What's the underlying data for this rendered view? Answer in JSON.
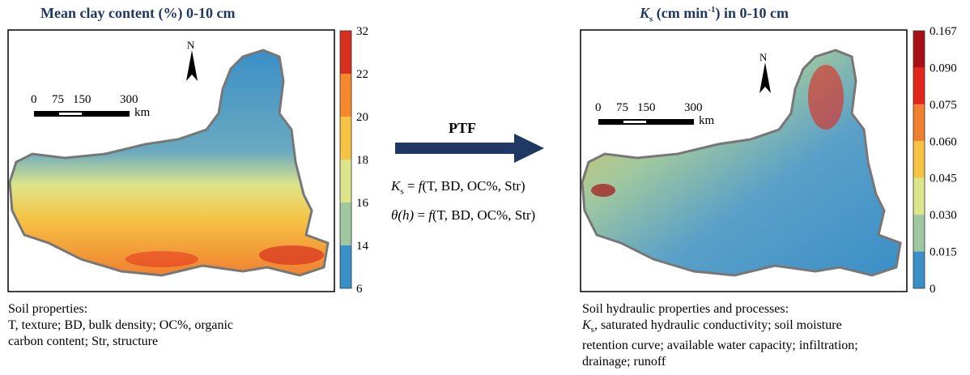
{
  "left_panel": {
    "title": "Mean clay content (%) 0-10 cm",
    "north": "N",
    "scale": {
      "ticks": [
        "0",
        "75",
        "150",
        "300"
      ],
      "unit": "km"
    },
    "colorbar": {
      "labels": [
        "32",
        "22",
        "20",
        "18",
        "16",
        "14",
        "6"
      ],
      "colors": [
        "#d7301f",
        "#f4882b",
        "#f6c344",
        "#dde58a",
        "#9fc8a0",
        "#3a8fc7"
      ]
    },
    "caption": [
      "Soil properties:",
      "T, texture; BD, bulk density; OC%, organic",
      "carbon content; Str, structure"
    ]
  },
  "middle": {
    "arrow_label": "PTF",
    "equation_1": {
      "symbol": "K",
      "subscript": "s",
      "equals": " = ",
      "function": "f",
      "arguments": "(T, BD, OC%, Str)"
    },
    "equation_2": {
      "symbol": "θ(h)",
      "equals": " = ",
      "function": "f",
      "arguments": "(T, BD, OC%, Str)"
    }
  },
  "right_panel": {
    "title": {
      "symbol": "K",
      "subscript": "s",
      "text_1": " (cm min",
      "superscript": "-1",
      "text_2": ") in 0-10 cm"
    },
    "north": "N",
    "scale": {
      "ticks": [
        "0",
        "75",
        "150",
        "300"
      ],
      "unit": "km"
    },
    "colorbar": {
      "labels": [
        "0.167",
        "0.090",
        "0.075",
        "0.060",
        "0.045",
        "0.030",
        "0.015",
        "0"
      ],
      "colors": [
        "#a50f15",
        "#e3261c",
        "#f08030",
        "#f6c344",
        "#dde58a",
        "#9fc8a0",
        "#3a8fc7"
      ]
    },
    "caption": {
      "line_1": "Soil hydraulic properties and processes:",
      "line_2": {
        "symbol": "K",
        "subscript": "s",
        "text": ", saturated hydraulic conductivity; soil moisture"
      },
      "line_3": "retention curve; available water capacity; infiltration;",
      "line_4": "drainage; runoff"
    }
  }
}
